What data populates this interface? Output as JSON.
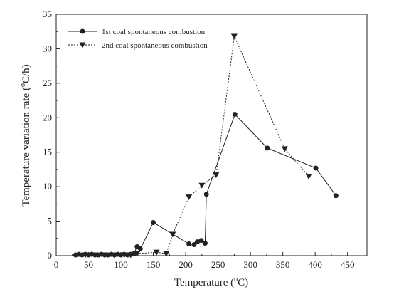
{
  "chart_data": {
    "type": "line",
    "xlabel": {
      "pre": "Temperature (",
      "sup": "o",
      "post": "C)"
    },
    "ylabel": {
      "pre": "Temperature variation rate (",
      "sup": "o",
      "post": "C/h)"
    },
    "xlim": [
      0,
      480
    ],
    "ylim": [
      0,
      35
    ],
    "xticks": [
      0,
      50,
      100,
      150,
      200,
      250,
      300,
      350,
      400,
      450
    ],
    "yticks": [
      0,
      5,
      10,
      15,
      20,
      25,
      30,
      35
    ],
    "grid": false,
    "legend_position": "top-left",
    "series": [
      {
        "name": "1st coal spontaneous combustion",
        "marker": "circle",
        "line": "solid",
        "color": "#222222",
        "x": [
          30,
          35,
          40,
          45,
          50,
          55,
          60,
          65,
          70,
          75,
          80,
          85,
          90,
          95,
          100,
          105,
          110,
          115,
          120,
          125,
          130,
          150,
          205,
          213,
          218,
          224,
          230,
          232,
          276,
          326,
          401,
          432
        ],
        "y": [
          0.1,
          0.2,
          0.1,
          0.2,
          0.1,
          0.2,
          0.1,
          0.1,
          0.2,
          0.1,
          0.1,
          0.2,
          0.1,
          0.2,
          0.1,
          0.2,
          0.1,
          0.2,
          0.3,
          1.3,
          1.0,
          4.8,
          1.7,
          1.6,
          2.0,
          2.2,
          1.8,
          8.9,
          20.5,
          15.6,
          12.7,
          8.7
        ]
      },
      {
        "name": "2nd coal spontaneous combustion",
        "marker": "triangle-down",
        "line": "dotted",
        "color": "#222222",
        "x": [
          45,
          60,
          75,
          90,
          105,
          115,
          125,
          155,
          170,
          180,
          205,
          225,
          247,
          275,
          353,
          390
        ],
        "y": [
          0.1,
          0.1,
          0.1,
          0.1,
          0.1,
          0.1,
          0.3,
          0.5,
          0.3,
          3.1,
          8.5,
          10.2,
          11.7,
          31.8,
          15.5,
          11.5
        ]
      }
    ]
  }
}
